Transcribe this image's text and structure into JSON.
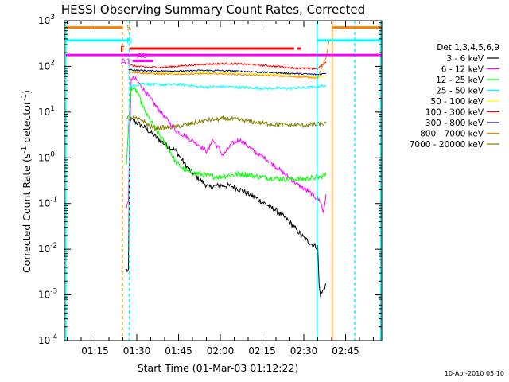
{
  "chart_data": {
    "type": "line",
    "title": "HESSI Observing Summary Count Rates, Corrected",
    "xlabel": "Start Time (01-Mar-03 01:12:22)",
    "ylabel": "Corrected Count Rate (s",
    "ylabel_sup1": "-1",
    "ylabel_mid": " detector",
    "ylabel_sup2": "-1",
    "ylabel_end": ")",
    "x_unit": "minutes",
    "xlim": [
      64,
      178
    ],
    "ylim_log10": [
      -4,
      3
    ],
    "yscale": "log",
    "grid": false,
    "legend_placement": "right",
    "footer_date": "10-Apr-2010 05:10",
    "legend_title": "Det 1,3,4,5,6,9",
    "x_ticks": [
      {
        "value": 75,
        "label": "01:15"
      },
      {
        "value": 90,
        "label": "01:30"
      },
      {
        "value": 105,
        "label": "01:45"
      },
      {
        "value": 120,
        "label": "02:00"
      },
      {
        "value": 135,
        "label": "02:15"
      },
      {
        "value": 150,
        "label": "02:30"
      },
      {
        "value": 165,
        "label": "02:45"
      }
    ],
    "y_ticks": [
      {
        "exp": 3,
        "label": "10",
        "sup": "3"
      },
      {
        "exp": 2,
        "label": "10",
        "sup": "2"
      },
      {
        "exp": 1,
        "label": "10",
        "sup": "1"
      },
      {
        "exp": 0,
        "label": "10",
        "sup": "0"
      },
      {
        "exp": -1,
        "label": "10",
        "sup": "-1"
      },
      {
        "exp": -2,
        "label": "10",
        "sup": "-2"
      },
      {
        "exp": -3,
        "label": "10",
        "sup": "-3"
      },
      {
        "exp": -4,
        "label": "10",
        "sup": "-4"
      }
    ],
    "series": [
      {
        "name": "3 - 6 keV",
        "color": "#000000",
        "points": [
          [
            86.3,
            -2.45
          ],
          [
            87.0,
            -2.5
          ],
          [
            87.5,
            0.85
          ],
          [
            89,
            0.8
          ],
          [
            92,
            0.7
          ],
          [
            96,
            0.5
          ],
          [
            100,
            0.3
          ],
          [
            104,
            0.15
          ],
          [
            108,
            -0.2
          ],
          [
            112,
            -0.45
          ],
          [
            116,
            -0.65
          ],
          [
            120,
            -0.6
          ],
          [
            124,
            -0.62
          ],
          [
            128,
            -0.72
          ],
          [
            132,
            -0.85
          ],
          [
            136,
            -1.0
          ],
          [
            140,
            -1.15
          ],
          [
            144,
            -1.35
          ],
          [
            147,
            -1.55
          ],
          [
            150,
            -1.75
          ],
          [
            153,
            -1.9
          ],
          [
            155,
            -1.95
          ],
          [
            155.5,
            -2.8
          ],
          [
            156,
            -3.0
          ],
          [
            157,
            -2.9
          ],
          [
            158,
            -2.75
          ]
        ]
      },
      {
        "name": "6 - 12 keV",
        "color": "#ff00ff",
        "points": [
          [
            86.3,
            -1.1
          ],
          [
            87.0,
            -0.9
          ],
          [
            88,
            1.75
          ],
          [
            90,
            1.7
          ],
          [
            93,
            1.45
          ],
          [
            96,
            1.2
          ],
          [
            100,
            0.9
          ],
          [
            104,
            0.6
          ],
          [
            108,
            0.45
          ],
          [
            112,
            0.3
          ],
          [
            115,
            0.15
          ],
          [
            116,
            0.2
          ],
          [
            117,
            0.4
          ],
          [
            119,
            0.25
          ],
          [
            121,
            0.05
          ],
          [
            124,
            0.3
          ],
          [
            127,
            0.4
          ],
          [
            130,
            0.25
          ],
          [
            133,
            0.1
          ],
          [
            136,
            0.0
          ],
          [
            140,
            -0.2
          ],
          [
            144,
            -0.4
          ],
          [
            148,
            -0.6
          ],
          [
            152,
            -0.75
          ],
          [
            156,
            -0.95
          ],
          [
            157,
            -1.2
          ],
          [
            158,
            -0.8
          ]
        ]
      },
      {
        "name": "12 - 25 keV",
        "color": "#00ff00",
        "points": [
          [
            86.3,
            -0.2
          ],
          [
            87.0,
            0.7
          ],
          [
            88,
            1.55
          ],
          [
            90,
            1.45
          ],
          [
            93,
            1.0
          ],
          [
            97,
            0.6
          ],
          [
            101,
            0.25
          ],
          [
            104,
            -0.1
          ],
          [
            108,
            -0.3
          ],
          [
            112,
            -0.35
          ],
          [
            116,
            -0.4
          ],
          [
            120,
            -0.42
          ],
          [
            124,
            -0.38
          ],
          [
            128,
            -0.35
          ],
          [
            132,
            -0.4
          ],
          [
            136,
            -0.43
          ],
          [
            140,
            -0.45
          ],
          [
            144,
            -0.47
          ],
          [
            148,
            -0.47
          ],
          [
            152,
            -0.45
          ],
          [
            156,
            -0.42
          ],
          [
            158,
            -0.38
          ]
        ]
      },
      {
        "name": "25 - 50 keV",
        "color": "#00ffff",
        "points": [
          [
            87.0,
            1.55
          ],
          [
            89,
            1.58
          ],
          [
            92,
            1.63
          ],
          [
            96,
            1.6
          ],
          [
            100,
            1.6
          ],
          [
            104,
            1.61
          ],
          [
            108,
            1.6
          ],
          [
            112,
            1.55
          ],
          [
            116,
            1.55
          ],
          [
            120,
            1.56
          ],
          [
            124,
            1.55
          ],
          [
            128,
            1.54
          ],
          [
            132,
            1.53
          ],
          [
            136,
            1.52
          ],
          [
            140,
            1.52
          ],
          [
            144,
            1.52
          ],
          [
            148,
            1.53
          ],
          [
            152,
            1.54
          ],
          [
            155,
            1.56
          ],
          [
            158,
            1.58
          ]
        ]
      },
      {
        "name": "50 - 100 keV",
        "color": "#ffff00",
        "points": [
          [
            87.0,
            1.92
          ],
          [
            89,
            1.9
          ],
          [
            92,
            1.88
          ],
          [
            96,
            1.86
          ],
          [
            100,
            1.86
          ],
          [
            104,
            1.86
          ],
          [
            108,
            1.87
          ],
          [
            112,
            1.88
          ],
          [
            116,
            1.88
          ],
          [
            120,
            1.88
          ],
          [
            124,
            1.87
          ],
          [
            128,
            1.86
          ],
          [
            132,
            1.85
          ],
          [
            136,
            1.84
          ],
          [
            140,
            1.83
          ],
          [
            144,
            1.82
          ],
          [
            148,
            1.8
          ],
          [
            152,
            1.78
          ],
          [
            155,
            1.76
          ],
          [
            158,
            1.8
          ]
        ]
      },
      {
        "name": "100 - 300 keV",
        "color": "#ff0000",
        "points": [
          [
            87.0,
            2.03
          ],
          [
            89,
            2.01
          ],
          [
            92,
            1.99
          ],
          [
            96,
            1.98
          ],
          [
            100,
            1.98
          ],
          [
            104,
            2.0
          ],
          [
            108,
            2.02
          ],
          [
            112,
            2.04
          ],
          [
            116,
            2.05
          ],
          [
            120,
            2.06
          ],
          [
            124,
            2.06
          ],
          [
            128,
            2.05
          ],
          [
            132,
            2.04
          ],
          [
            136,
            2.02
          ],
          [
            140,
            2.0
          ],
          [
            144,
            1.98
          ],
          [
            148,
            1.96
          ],
          [
            152,
            1.95
          ],
          [
            155,
            1.95
          ],
          [
            158,
            2.1
          ]
        ]
      },
      {
        "name": "300 - 800 keV",
        "color": "#0000aa",
        "points": [
          [
            87.0,
            1.93
          ],
          [
            89,
            1.92
          ],
          [
            92,
            1.91
          ],
          [
            96,
            1.9
          ],
          [
            100,
            1.9
          ],
          [
            104,
            1.9
          ],
          [
            108,
            1.9
          ],
          [
            112,
            1.91
          ],
          [
            116,
            1.91
          ],
          [
            120,
            1.91
          ],
          [
            124,
            1.9
          ],
          [
            128,
            1.89
          ],
          [
            132,
            1.88
          ],
          [
            136,
            1.87
          ],
          [
            140,
            1.86
          ],
          [
            144,
            1.85
          ],
          [
            148,
            1.84
          ],
          [
            152,
            1.83
          ],
          [
            155,
            1.82
          ],
          [
            158,
            1.85
          ]
        ]
      },
      {
        "name": "800 - 7000 keV",
        "color": "#ff8000",
        "points": [
          [
            87.0,
            1.88
          ],
          [
            89,
            1.87
          ],
          [
            92,
            1.85
          ],
          [
            96,
            1.84
          ],
          [
            100,
            1.83
          ],
          [
            104,
            1.83
          ],
          [
            108,
            1.83
          ],
          [
            112,
            1.84
          ],
          [
            116,
            1.84
          ],
          [
            120,
            1.84
          ],
          [
            124,
            1.83
          ],
          [
            128,
            1.82
          ],
          [
            132,
            1.81
          ],
          [
            136,
            1.8
          ],
          [
            140,
            1.79
          ],
          [
            144,
            1.78
          ],
          [
            148,
            1.77
          ],
          [
            152,
            1.76
          ],
          [
            155,
            1.75
          ],
          [
            158,
            2.2
          ],
          [
            159.2,
            2.6
          ]
        ]
      },
      {
        "name": "7000 - 20000 keV",
        "color": "#808000",
        "points": [
          [
            86.3,
            0.9
          ],
          [
            88,
            0.88
          ],
          [
            90,
            0.85
          ],
          [
            92,
            0.82
          ],
          [
            94,
            0.72
          ],
          [
            96,
            0.65
          ],
          [
            98,
            0.66
          ],
          [
            100,
            0.66
          ],
          [
            104,
            0.68
          ],
          [
            108,
            0.72
          ],
          [
            112,
            0.78
          ],
          [
            116,
            0.83
          ],
          [
            120,
            0.85
          ],
          [
            124,
            0.85
          ],
          [
            128,
            0.82
          ],
          [
            132,
            0.78
          ],
          [
            136,
            0.75
          ],
          [
            140,
            0.73
          ],
          [
            144,
            0.72
          ],
          [
            148,
            0.71
          ],
          [
            152,
            0.72
          ],
          [
            155,
            0.73
          ],
          [
            158,
            0.75
          ]
        ]
      }
    ],
    "vertical_lines": [
      {
        "x": 64.5,
        "color": "#00ffff",
        "dash": false
      },
      {
        "x": 84.8,
        "color": "#ff8000",
        "dash": true
      },
      {
        "x": 87.3,
        "color": "#00ffff",
        "dash": true
      },
      {
        "x": 154.8,
        "color": "#00ffff",
        "dash": false
      },
      {
        "x": 160.2,
        "color": "#ff8000",
        "dash": false
      },
      {
        "x": 168.3,
        "color": "#00ffff",
        "dash": true
      },
      {
        "x": 177.6,
        "color": "#00ffff",
        "dash": false
      }
    ],
    "flag_bars": [
      {
        "label": "S",
        "color": "#ff8000",
        "y": 2.85,
        "segments": [
          [
            64.5,
            84.8
          ],
          [
            160.2,
            178
          ]
        ]
      },
      {
        "label": "N",
        "color": "#00ffff",
        "y": 2.57,
        "segments": [
          [
            64.5,
            87.3
          ],
          [
            154.8,
            178
          ]
        ]
      },
      {
        "label": "F",
        "color": "#ff0000",
        "y": 2.39,
        "segments": [
          [
            87.3,
            146.5
          ],
          [
            147.5,
            149.0
          ]
        ]
      },
      {
        "label": "A0",
        "color": "#ff00ff",
        "y": 2.25,
        "segments": [
          [
            64.5,
            178
          ]
        ]
      },
      {
        "label": "A1",
        "color": "#ff00ff",
        "y": 2.12,
        "segments": [
          [
            88.5,
            96.0
          ]
        ]
      }
    ]
  }
}
